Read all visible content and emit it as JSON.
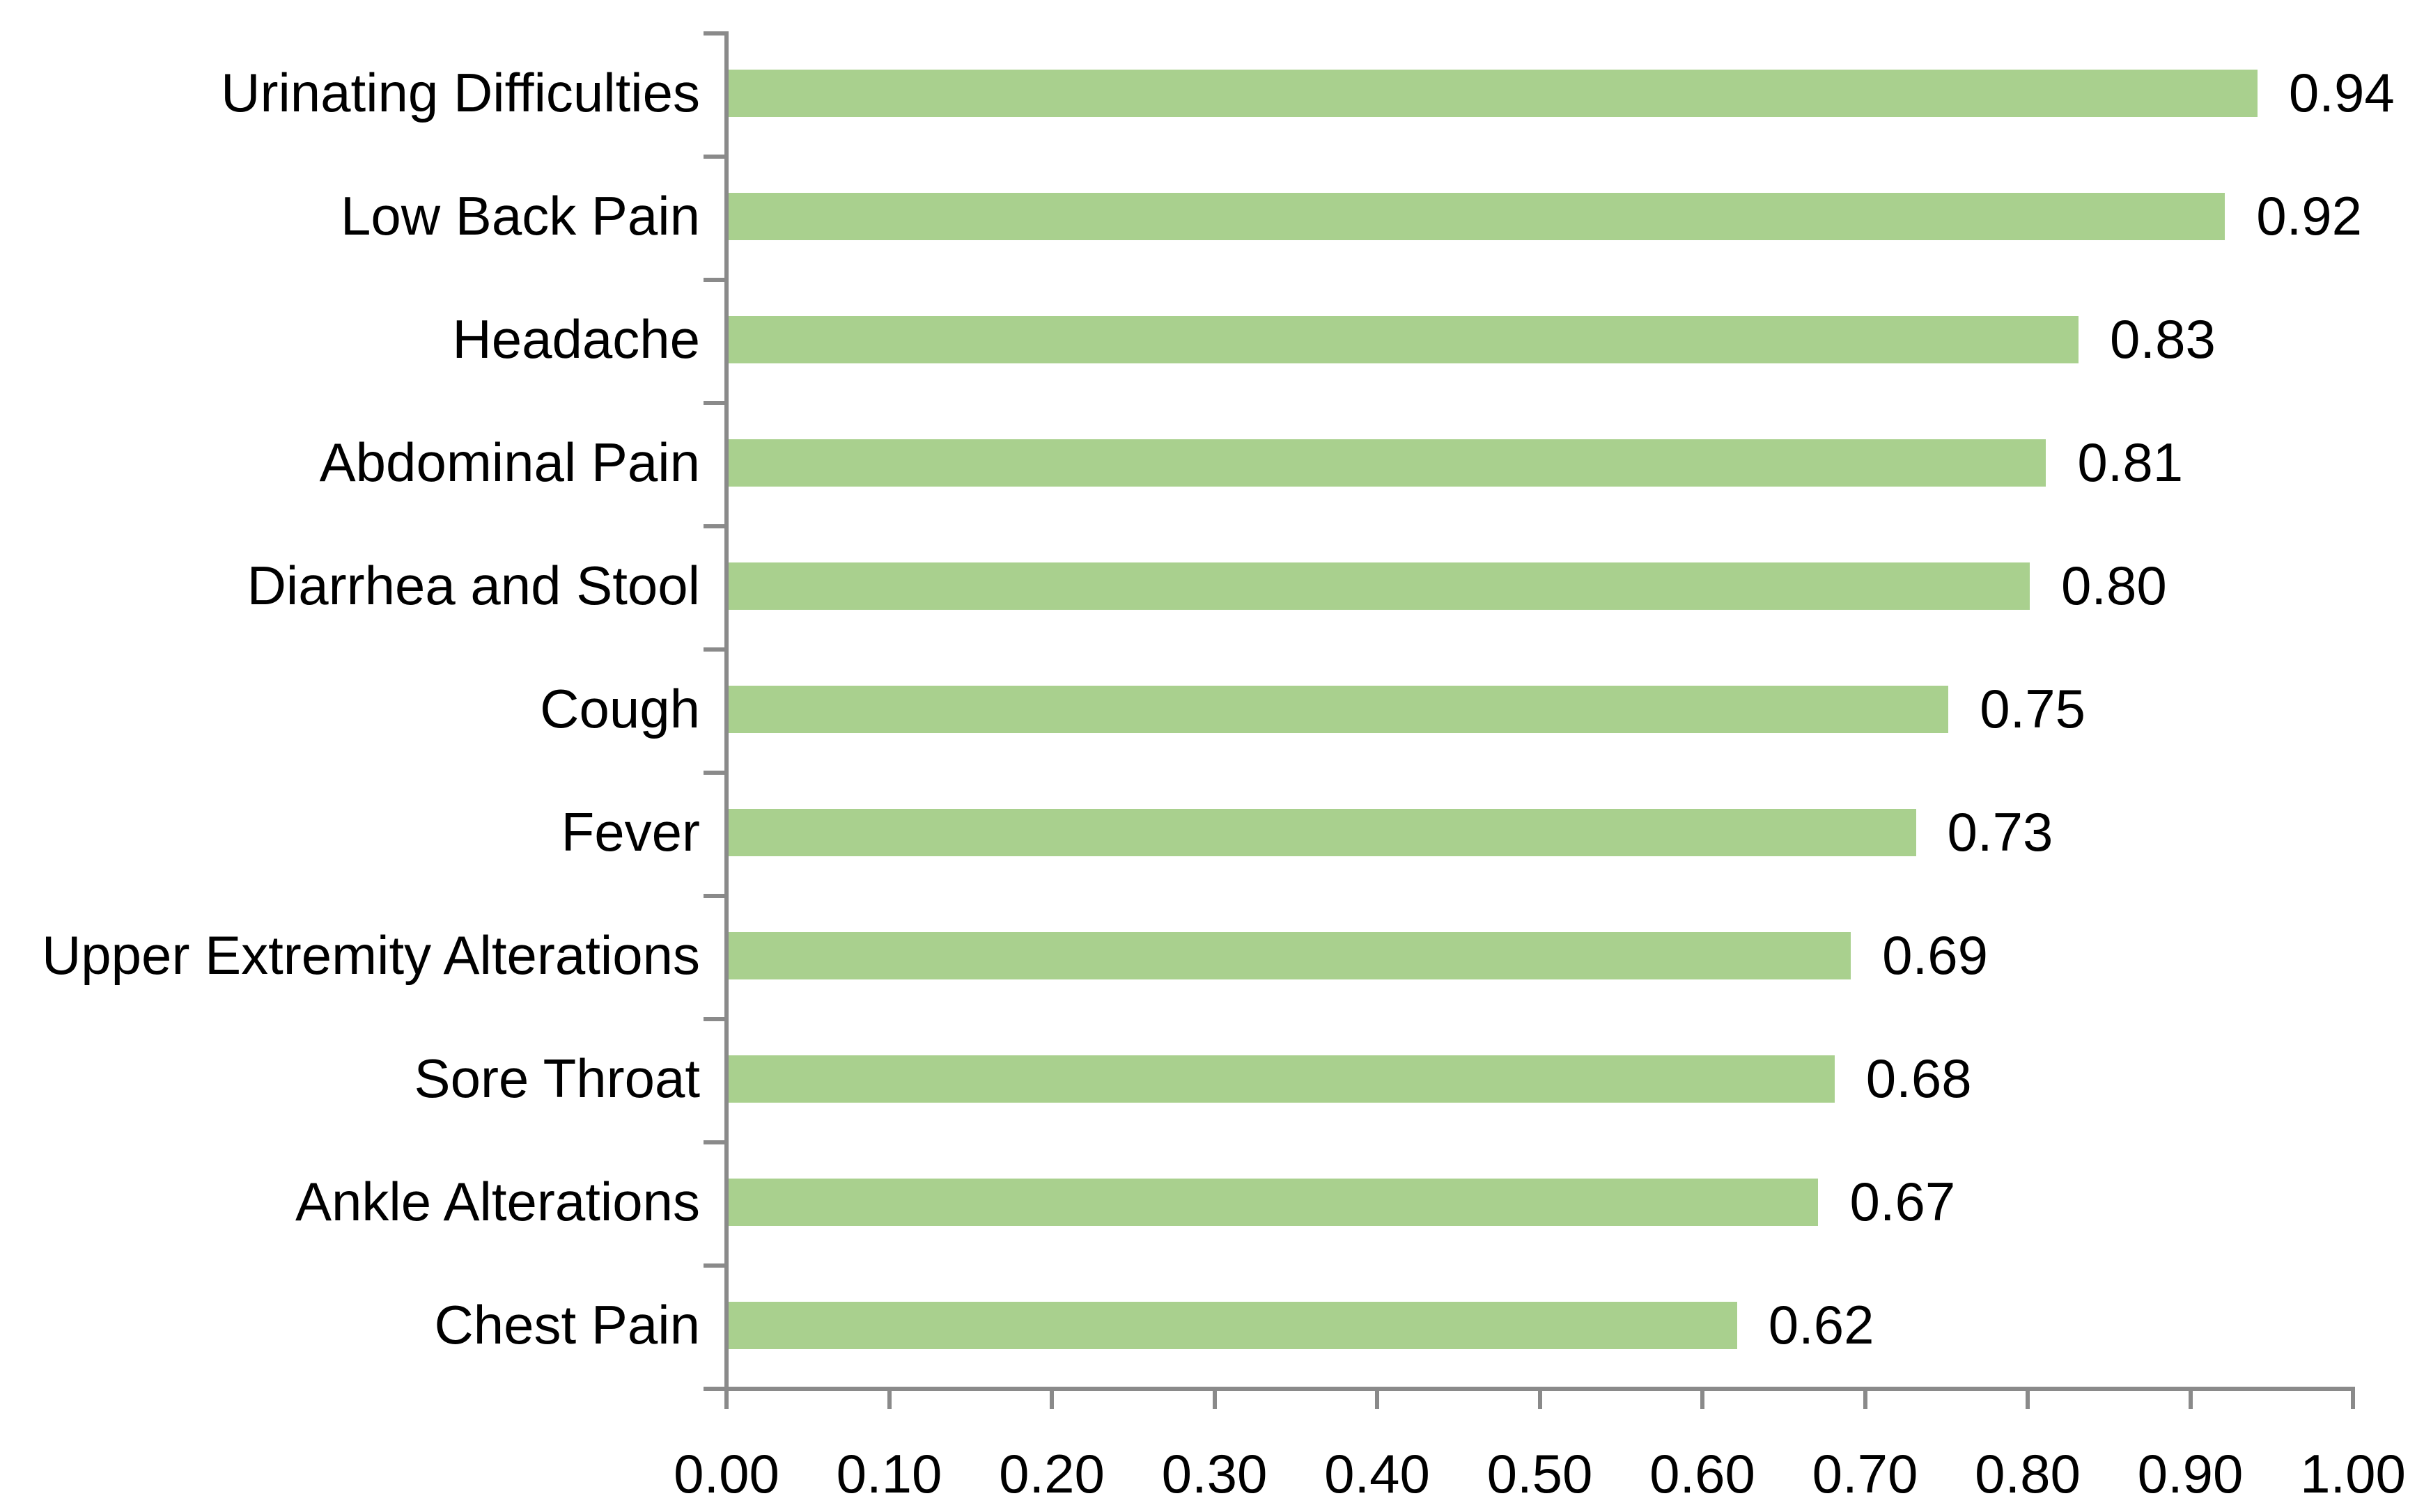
{
  "chart_data": {
    "type": "bar",
    "orientation": "horizontal",
    "title": "",
    "xlabel": "",
    "ylabel": "",
    "categories": [
      "Urinating Difficulties",
      "Low Back Pain",
      "Headache",
      "Abdominal Pain",
      "Diarrhea and Stool",
      "Cough",
      "Fever",
      "Upper Extremity Alterations",
      "Sore Throat",
      "Ankle Alterations",
      "Chest Pain"
    ],
    "values": [
      0.94,
      0.92,
      0.83,
      0.81,
      0.8,
      0.75,
      0.73,
      0.69,
      0.68,
      0.67,
      0.62
    ],
    "value_labels": [
      "0.94",
      "0.92",
      "0.83",
      "0.81",
      "0.80",
      "0.75",
      "0.73",
      "0.69",
      "0.68",
      "0.67",
      "0.62"
    ],
    "xlim": [
      0,
      1
    ],
    "x_tick_values": [
      0.0,
      0.1,
      0.2,
      0.3,
      0.4,
      0.5,
      0.6,
      0.7,
      0.8,
      0.9,
      1.0
    ],
    "x_tick_labels": [
      "0.00",
      "0.10",
      "0.20",
      "0.30",
      "0.40",
      "0.50",
      "0.60",
      "0.70",
      "0.80",
      "0.90",
      "1.00"
    ],
    "grid": false,
    "legend": false,
    "data_labels_shown": true,
    "colors": {
      "bar": "#a9d08e",
      "axis": "#8a8a8a",
      "text": "#000000",
      "background": "#ffffff"
    }
  }
}
